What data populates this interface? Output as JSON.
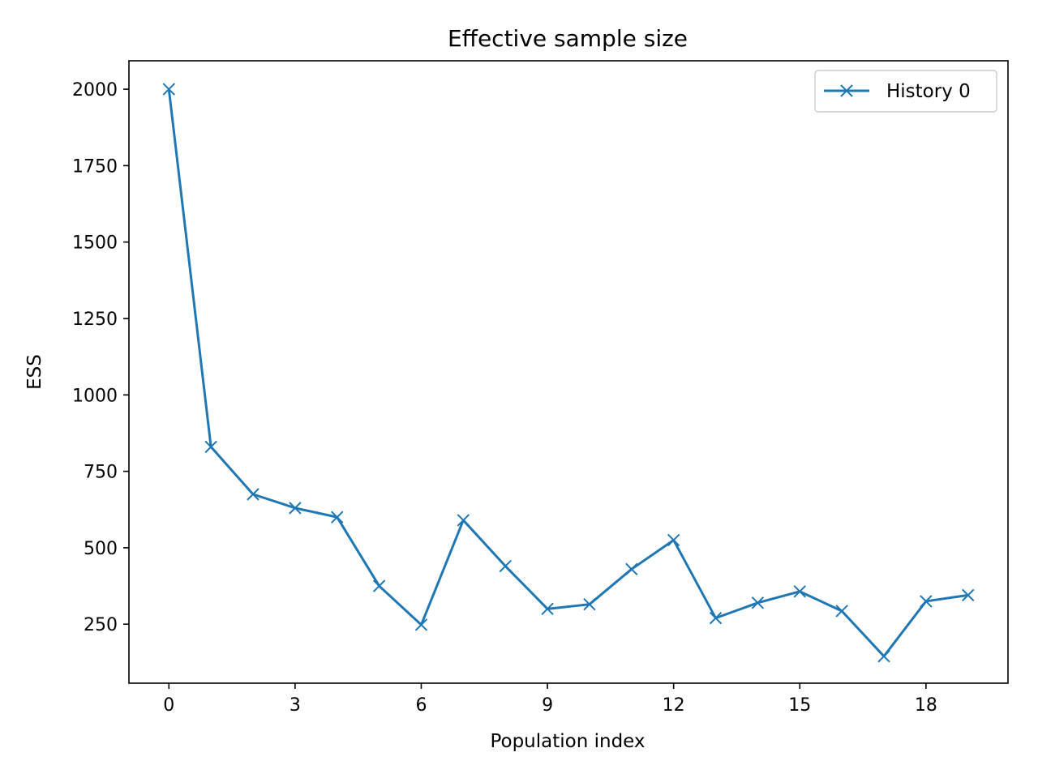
{
  "chart_data": {
    "type": "line",
    "title": "Effective sample size",
    "xlabel": "Population index",
    "ylabel": "ESS",
    "xlim": [
      -0.95,
      19.95
    ],
    "ylim": [
      57,
      2093
    ],
    "x_ticks": [
      0,
      3,
      6,
      9,
      12,
      15,
      18
    ],
    "y_ticks": [
      250,
      500,
      750,
      1000,
      1250,
      1500,
      1750,
      2000
    ],
    "grid": false,
    "legend_position": "top-right",
    "series": [
      {
        "name": "History 0",
        "color": "#1f77b4",
        "marker": "x",
        "x": [
          0,
          1,
          2,
          3,
          4,
          5,
          6,
          7,
          8,
          9,
          10,
          11,
          12,
          13,
          14,
          15,
          16,
          17,
          18,
          19
        ],
        "values": [
          2000,
          830,
          675,
          630,
          600,
          375,
          248,
          590,
          440,
          300,
          315,
          430,
          525,
          270,
          320,
          357,
          293,
          145,
          325,
          345
        ]
      }
    ]
  }
}
